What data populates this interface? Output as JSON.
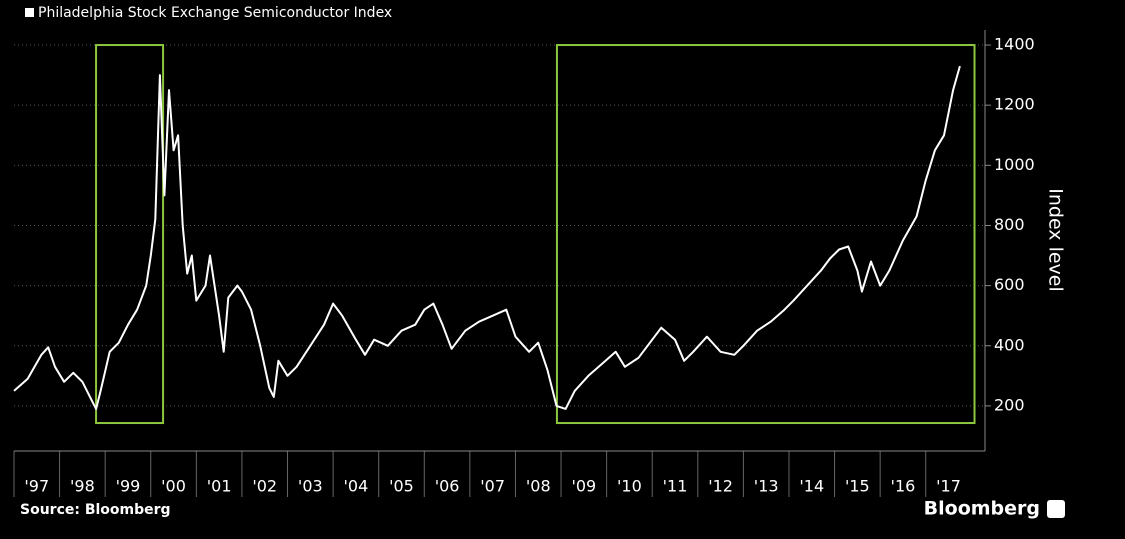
{
  "chart_data": {
    "type": "line",
    "title": "Philadelphia Stock Exchange Semiconductor Index",
    "y_axis_label": "Index level",
    "source": "Source: Bloomberg",
    "brand": "Bloomberg",
    "color": "#ffffff",
    "grid": true,
    "xlim": [
      1997,
      2018.3
    ],
    "ylim": [
      50,
      1450
    ],
    "yticks": [
      200,
      400,
      600,
      800,
      1000,
      1200,
      1400
    ],
    "xticks": [
      {
        "value": 1997.5,
        "label": "'97"
      },
      {
        "value": 1998.5,
        "label": "'98"
      },
      {
        "value": 1999.5,
        "label": "'99"
      },
      {
        "value": 2000.5,
        "label": "'00"
      },
      {
        "value": 2001.5,
        "label": "'01"
      },
      {
        "value": 2002.5,
        "label": "'02"
      },
      {
        "value": 2003.5,
        "label": "'03"
      },
      {
        "value": 2004.5,
        "label": "'04"
      },
      {
        "value": 2005.5,
        "label": "'05"
      },
      {
        "value": 2006.5,
        "label": "'06"
      },
      {
        "value": 2007.5,
        "label": "'07"
      },
      {
        "value": 2008.5,
        "label": "'08"
      },
      {
        "value": 2009.5,
        "label": "'09"
      },
      {
        "value": 2010.5,
        "label": "'10"
      },
      {
        "value": 2011.5,
        "label": "'11"
      },
      {
        "value": 2012.5,
        "label": "'12"
      },
      {
        "value": 2013.5,
        "label": "'13"
      },
      {
        "value": 2014.5,
        "label": "'14"
      },
      {
        "value": 2015.5,
        "label": "'15"
      },
      {
        "value": 2016.5,
        "label": "'16"
      },
      {
        "value": 2017.5,
        "label": "'17"
      }
    ],
    "x": [
      1997.0,
      1997.3,
      1997.6,
      1997.75,
      1997.9,
      1998.1,
      1998.3,
      1998.5,
      1998.7,
      1998.8,
      1998.9,
      1999.1,
      1999.3,
      1999.5,
      1999.7,
      1999.9,
      2000.0,
      2000.1,
      2000.2,
      2000.3,
      2000.4,
      2000.5,
      2000.6,
      2000.7,
      2000.8,
      2000.9,
      2001.0,
      2001.2,
      2001.3,
      2001.5,
      2001.6,
      2001.7,
      2001.9,
      2002.0,
      2002.2,
      2002.4,
      2002.6,
      2002.7,
      2002.8,
      2003.0,
      2003.2,
      2003.5,
      2003.8,
      2004.0,
      2004.2,
      2004.5,
      2004.7,
      2004.9,
      2005.2,
      2005.5,
      2005.8,
      2006.0,
      2006.2,
      2006.4,
      2006.6,
      2006.9,
      2007.2,
      2007.5,
      2007.8,
      2008.0,
      2008.3,
      2008.5,
      2008.7,
      2008.9,
      2009.1,
      2009.3,
      2009.6,
      2009.9,
      2010.2,
      2010.4,
      2010.7,
      2011.0,
      2011.2,
      2011.5,
      2011.7,
      2011.9,
      2012.2,
      2012.5,
      2012.8,
      2013.0,
      2013.3,
      2013.6,
      2013.9,
      2014.1,
      2014.4,
      2014.7,
      2014.9,
      2015.1,
      2015.3,
      2015.5,
      2015.6,
      2015.8,
      2016.0,
      2016.2,
      2016.5,
      2016.8,
      2017.0,
      2017.2,
      2017.4,
      2017.6,
      2017.75
    ],
    "values": [
      250,
      290,
      370,
      395,
      330,
      280,
      310,
      280,
      220,
      190,
      250,
      380,
      410,
      470,
      520,
      600,
      700,
      820,
      1300,
      900,
      1250,
      1050,
      1100,
      800,
      640,
      700,
      550,
      600,
      700,
      500,
      380,
      560,
      600,
      580,
      520,
      400,
      260,
      230,
      350,
      300,
      330,
      400,
      470,
      540,
      500,
      420,
      370,
      420,
      400,
      450,
      470,
      520,
      540,
      470,
      390,
      450,
      480,
      500,
      520,
      430,
      380,
      410,
      320,
      200,
      190,
      250,
      300,
      340,
      380,
      330,
      360,
      420,
      460,
      420,
      350,
      380,
      430,
      380,
      370,
      400,
      450,
      480,
      520,
      550,
      600,
      650,
      690,
      720,
      730,
      650,
      580,
      680,
      600,
      650,
      750,
      830,
      950,
      1050,
      1100,
      1250,
      1330
    ],
    "highlights": [
      {
        "x": [
          1998.8,
          2000.27
        ],
        "y": [
          143,
          1400
        ],
        "color": "#8dc63f"
      },
      {
        "x": [
          2008.91,
          2018.07
        ],
        "y": [
          143,
          1400
        ],
        "color": "#8dc63f"
      }
    ]
  }
}
